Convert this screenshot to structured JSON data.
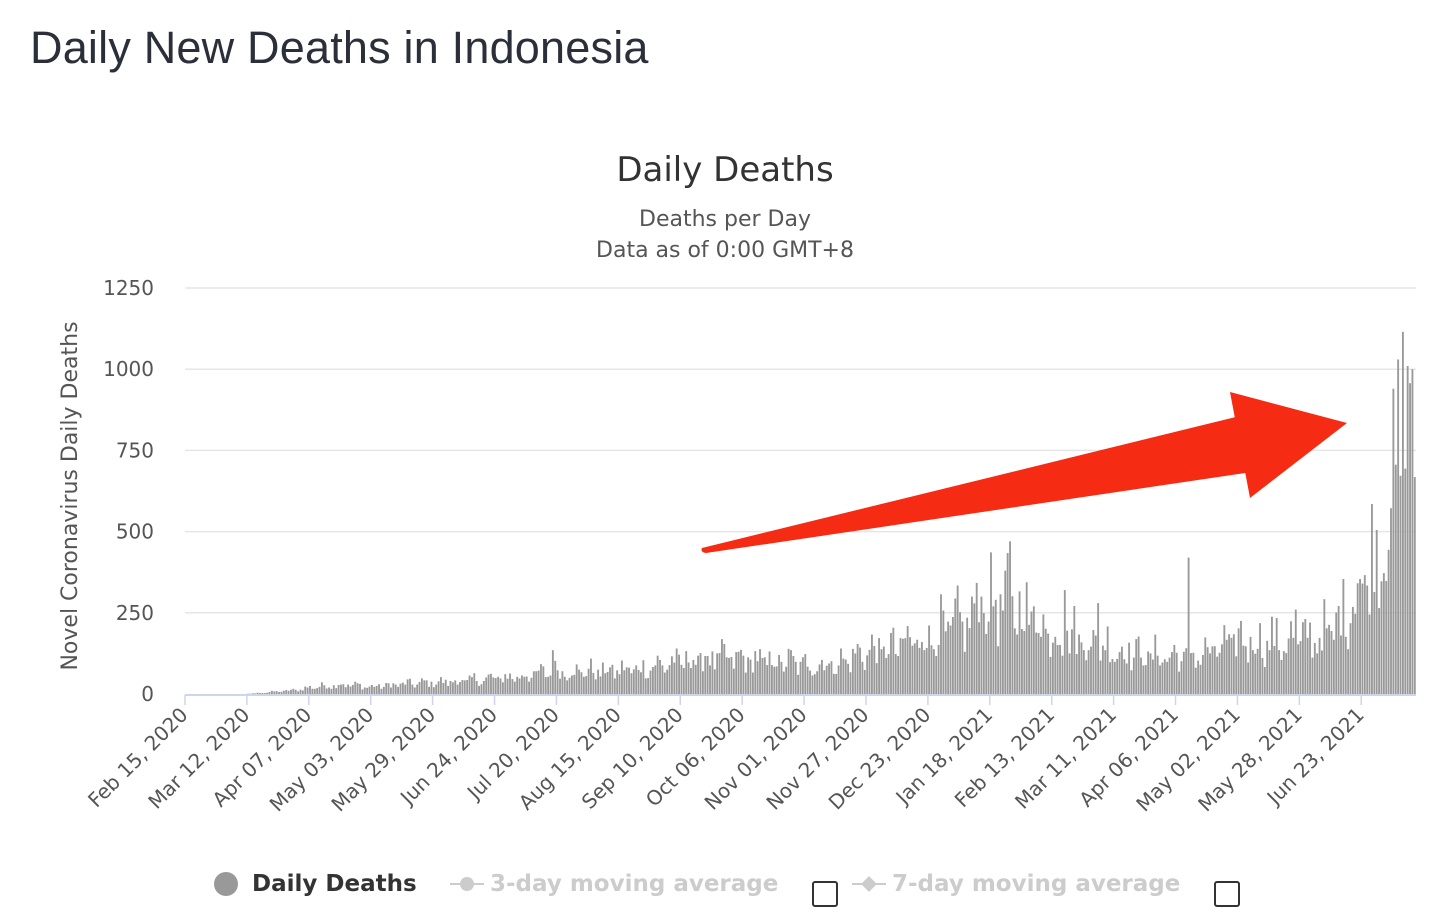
{
  "page": {
    "title": "Daily New Deaths in Indonesia"
  },
  "chart_data": {
    "type": "bar",
    "title": "Daily Deaths",
    "subtitle_lines": [
      "Deaths per Day",
      "Data as of 0:00 GMT+8"
    ],
    "xlabel": "",
    "ylabel": "Novel Coronavirus Daily Deaths",
    "ylim": [
      0,
      1250
    ],
    "yticks": [
      0,
      250,
      500,
      750,
      1000,
      1250
    ],
    "grid": true,
    "legend_position": "bottom",
    "bar_color": "#999999",
    "x_start": "2020-02-15",
    "x_end": "2021-07-15",
    "xtick_labels": [
      "Feb 15, 2020",
      "Mar 12, 2020",
      "Apr 07, 2020",
      "May 03, 2020",
      "May 29, 2020",
      "Jun 24, 2020",
      "Jul 20, 2020",
      "Aug 15, 2020",
      "Sep 10, 2020",
      "Oct 06, 2020",
      "Nov 01, 2020",
      "Nov 27, 2020",
      "Dec 23, 2020",
      "Jan 18, 2021",
      "Feb 13, 2021",
      "Mar 11, 2021",
      "Apr 06, 2021",
      "May 02, 2021",
      "May 28, 2021",
      "Jun 23, 2021"
    ],
    "series": [
      {
        "name": "Daily Deaths",
        "anchors": [
          [
            "2020-02-15",
            0
          ],
          [
            "2020-03-11",
            0
          ],
          [
            "2020-03-20",
            5
          ],
          [
            "2020-04-01",
            12
          ],
          [
            "2020-04-07",
            20
          ],
          [
            "2020-04-20",
            30
          ],
          [
            "2020-05-03",
            22
          ],
          [
            "2020-05-15",
            30
          ],
          [
            "2020-05-29",
            35
          ],
          [
            "2020-06-10",
            40
          ],
          [
            "2020-06-24",
            48
          ],
          [
            "2020-07-05",
            55
          ],
          [
            "2020-07-20",
            70
          ],
          [
            "2020-08-01",
            70
          ],
          [
            "2020-08-15",
            72
          ],
          [
            "2020-08-25",
            80
          ],
          [
            "2020-09-10",
            100
          ],
          [
            "2020-09-20",
            110
          ],
          [
            "2020-10-06",
            105
          ],
          [
            "2020-10-20",
            100
          ],
          [
            "2020-11-01",
            90
          ],
          [
            "2020-11-15",
            95
          ],
          [
            "2020-11-27",
            130
          ],
          [
            "2020-12-10",
            145
          ],
          [
            "2020-12-23",
            180
          ],
          [
            "2021-01-05",
            210
          ],
          [
            "2021-01-18",
            270
          ],
          [
            "2021-01-30",
            270
          ],
          [
            "2021-02-13",
            190
          ],
          [
            "2021-02-25",
            170
          ],
          [
            "2021-03-11",
            140
          ],
          [
            "2021-03-25",
            120
          ],
          [
            "2021-04-06",
            115
          ],
          [
            "2021-04-20",
            125
          ],
          [
            "2021-05-02",
            165
          ],
          [
            "2021-05-15",
            160
          ],
          [
            "2021-05-28",
            165
          ],
          [
            "2021-06-10",
            190
          ],
          [
            "2021-06-18",
            280
          ],
          [
            "2021-06-23",
            350
          ],
          [
            "2021-06-30",
            450
          ],
          [
            "2021-07-05",
            560
          ],
          [
            "2021-07-08",
            800
          ],
          [
            "2021-07-11",
            900
          ],
          [
            "2021-07-15",
            950
          ]
        ],
        "peaks": [
          [
            "2020-07-18",
            135
          ],
          [
            "2021-01-26",
            470
          ],
          [
            "2021-01-24",
            380
          ],
          [
            "2021-01-14",
            300
          ],
          [
            "2021-01-20",
            290
          ],
          [
            "2021-02-05",
            270
          ],
          [
            "2021-02-18",
            320
          ],
          [
            "2021-03-04",
            280
          ],
          [
            "2021-04-11",
            420
          ],
          [
            "2021-05-26",
            260
          ],
          [
            "2021-07-08",
            1030
          ],
          [
            "2021-07-12",
            1010
          ],
          [
            "2021-07-14",
            1000
          ]
        ]
      },
      {
        "name": "3-day moving average",
        "visible": false
      },
      {
        "name": "7-day moving average",
        "visible": false
      }
    ]
  },
  "annotation": {
    "arrow_color": "#f52b14"
  },
  "legend": {
    "items": [
      {
        "label": "Daily Deaths",
        "active": true,
        "color": "#999999"
      },
      {
        "label": "3-day moving average",
        "active": false,
        "color": "#cccccc"
      },
      {
        "label": "7-day moving average",
        "active": false,
        "color": "#cccccc"
      }
    ]
  }
}
